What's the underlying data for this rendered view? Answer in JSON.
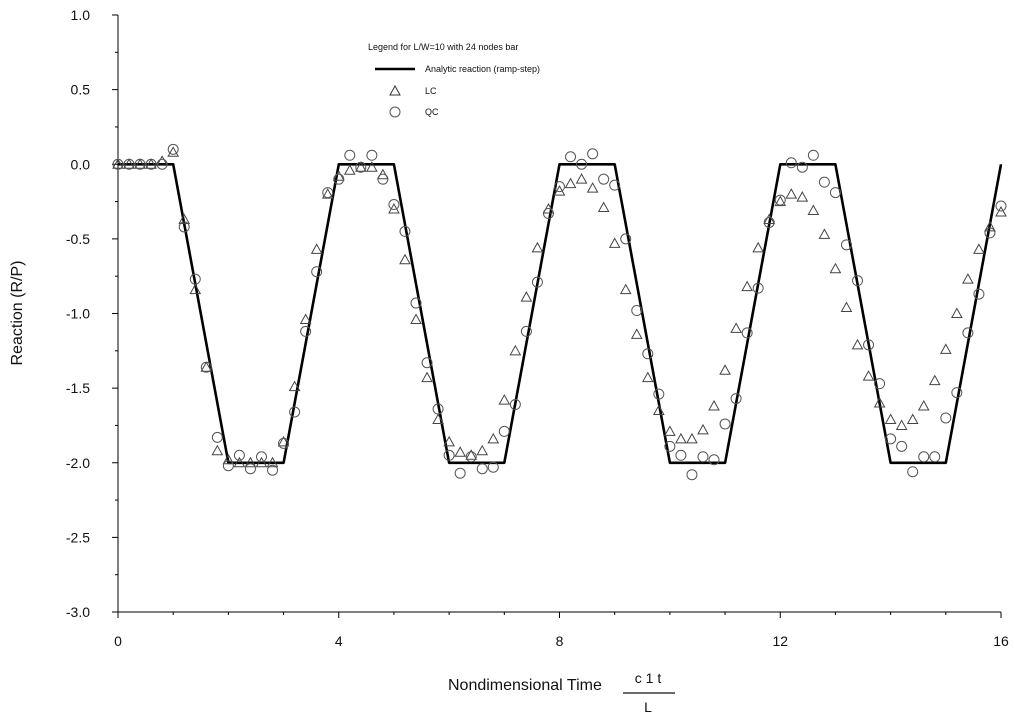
{
  "chart_data": {
    "type": "scatter",
    "xlabel": "Nondimensional Time",
    "xlabel_fraction": {
      "numerator": "c 1   t",
      "denominator": "L"
    },
    "ylabel": "Reaction (R/P)",
    "xlim": [
      0,
      16
    ],
    "ylim": [
      -3.0,
      1.0
    ],
    "x_ticks": [
      "0",
      "4",
      "8",
      "12",
      "16"
    ],
    "y_ticks": [
      "1.0",
      "0.5",
      "0.0",
      "-0.5",
      "-1.0",
      "-1.5",
      "-2.0",
      "-2.5",
      "-3.0"
    ],
    "grid": false,
    "legend": {
      "title": "Legend for L/W=10 with 24 nodes bar",
      "placement": "top-center",
      "entries": [
        {
          "label": "Analytic reaction (ramp-step)",
          "marker": "line"
        },
        {
          "label": "LC",
          "marker": "triangle"
        },
        {
          "label": "QC",
          "marker": "circle"
        }
      ]
    },
    "series": [
      {
        "name": "Analytic reaction (ramp-step)",
        "kind": "line",
        "color": "#000000",
        "x": [
          0,
          1,
          2,
          3,
          4,
          5,
          6,
          7,
          8,
          9,
          10,
          11,
          12,
          13,
          14,
          15,
          16
        ],
        "y": [
          0,
          0,
          -2,
          -2,
          0,
          0,
          -2,
          -2,
          0,
          0,
          -2,
          -2,
          0,
          0,
          -2,
          -2,
          0
        ]
      },
      {
        "name": "LC",
        "kind": "marker",
        "marker": "triangle",
        "color": "#444444",
        "x": [
          0,
          0.2,
          0.4,
          0.6,
          0.8,
          1.0,
          1.2,
          1.4,
          1.6,
          1.8,
          2.0,
          2.2,
          2.4,
          2.6,
          2.8,
          3.0,
          3.2,
          3.4,
          3.6,
          3.8,
          4.0,
          4.2,
          4.4,
          4.6,
          4.8,
          5.0,
          5.2,
          5.4,
          5.6,
          5.8,
          6.0,
          6.2,
          6.4,
          6.6,
          6.8,
          7.0,
          7.2,
          7.4,
          7.6,
          7.8,
          8.0,
          8.2,
          8.4,
          8.6,
          8.8,
          9.0,
          9.2,
          9.4,
          9.6,
          9.8,
          10.0,
          10.2,
          10.4,
          10.6,
          10.8,
          11.0,
          11.2,
          11.4,
          11.6,
          11.8,
          12.0,
          12.2,
          12.4,
          12.6,
          12.8,
          13.0,
          13.2,
          13.4,
          13.6,
          13.8,
          14.0,
          14.2,
          14.4,
          14.6,
          14.8,
          15.0,
          15.2,
          15.4,
          15.6,
          15.8,
          16.0
        ],
        "y": [
          0,
          0,
          0,
          0,
          0.02,
          0.08,
          -0.37,
          -0.84,
          -1.36,
          -1.92,
          -1.98,
          -2.0,
          -2.0,
          -2.0,
          -2.0,
          -1.86,
          -1.49,
          -1.04,
          -0.57,
          -0.2,
          -0.08,
          -0.04,
          -0.02,
          -0.02,
          -0.07,
          -0.3,
          -0.64,
          -1.04,
          -1.43,
          -1.71,
          -1.86,
          -1.93,
          -1.95,
          -1.92,
          -1.84,
          -1.58,
          -1.25,
          -0.89,
          -0.56,
          -0.3,
          -0.18,
          -0.13,
          -0.1,
          -0.16,
          -0.29,
          -0.53,
          -0.84,
          -1.14,
          -1.43,
          -1.65,
          -1.79,
          -1.84,
          -1.84,
          -1.78,
          -1.62,
          -1.38,
          -1.1,
          -0.82,
          -0.56,
          -0.37,
          -0.25,
          -0.2,
          -0.22,
          -0.31,
          -0.47,
          -0.7,
          -0.96,
          -1.21,
          -1.42,
          -1.6,
          -1.71,
          -1.75,
          -1.71,
          -1.62,
          -1.45,
          -1.24,
          -1.0,
          -0.77,
          -0.57,
          -0.42,
          -0.32
        ]
      },
      {
        "name": "QC",
        "kind": "marker",
        "marker": "circle",
        "color": "#555555",
        "x": [
          0,
          0.2,
          0.4,
          0.6,
          0.8,
          1.0,
          1.2,
          1.4,
          1.6,
          1.8,
          2.0,
          2.2,
          2.4,
          2.6,
          2.8,
          3.0,
          3.2,
          3.4,
          3.6,
          3.8,
          4.0,
          4.2,
          4.4,
          4.6,
          4.8,
          5.0,
          5.2,
          5.4,
          5.6,
          5.8,
          6.0,
          6.2,
          6.4,
          6.6,
          6.8,
          7.0,
          7.2,
          7.4,
          7.6,
          7.8,
          8.0,
          8.2,
          8.4,
          8.6,
          8.8,
          9.0,
          9.2,
          9.4,
          9.6,
          9.8,
          10.0,
          10.2,
          10.4,
          10.6,
          10.8,
          11.0,
          11.2,
          11.4,
          11.6,
          11.8,
          12.0,
          12.2,
          12.4,
          12.6,
          12.8,
          13.0,
          13.2,
          13.4,
          13.6,
          13.8,
          14.0,
          14.2,
          14.4,
          14.6,
          14.8,
          15.0,
          15.2,
          15.4,
          15.6,
          15.8,
          16.0
        ],
        "y": [
          0,
          0,
          0,
          0,
          0,
          0.1,
          -0.42,
          -0.77,
          -1.36,
          -1.83,
          -2.02,
          -1.95,
          -2.04,
          -1.96,
          -2.05,
          -1.87,
          -1.66,
          -1.12,
          -0.72,
          -0.19,
          -0.1,
          0.06,
          -0.02,
          0.06,
          -0.1,
          -0.27,
          -0.45,
          -0.93,
          -1.33,
          -1.64,
          -1.95,
          -2.07,
          -1.96,
          -2.04,
          -2.03,
          -1.79,
          -1.61,
          -1.12,
          -0.79,
          -0.33,
          -0.15,
          0.05,
          0.0,
          0.07,
          -0.1,
          -0.14,
          -0.5,
          -0.98,
          -1.27,
          -1.54,
          -1.89,
          -1.95,
          -2.08,
          -1.96,
          -1.98,
          -1.74,
          -1.57,
          -1.13,
          -0.83,
          -0.39,
          -0.24,
          0.01,
          -0.02,
          0.06,
          -0.12,
          -0.19,
          -0.54,
          -0.78,
          -1.21,
          -1.47,
          -1.84,
          -1.89,
          -2.06,
          -1.96,
          -1.96,
          -1.7,
          -1.53,
          -1.13,
          -0.87,
          -0.46,
          -0.28
        ]
      }
    ]
  }
}
